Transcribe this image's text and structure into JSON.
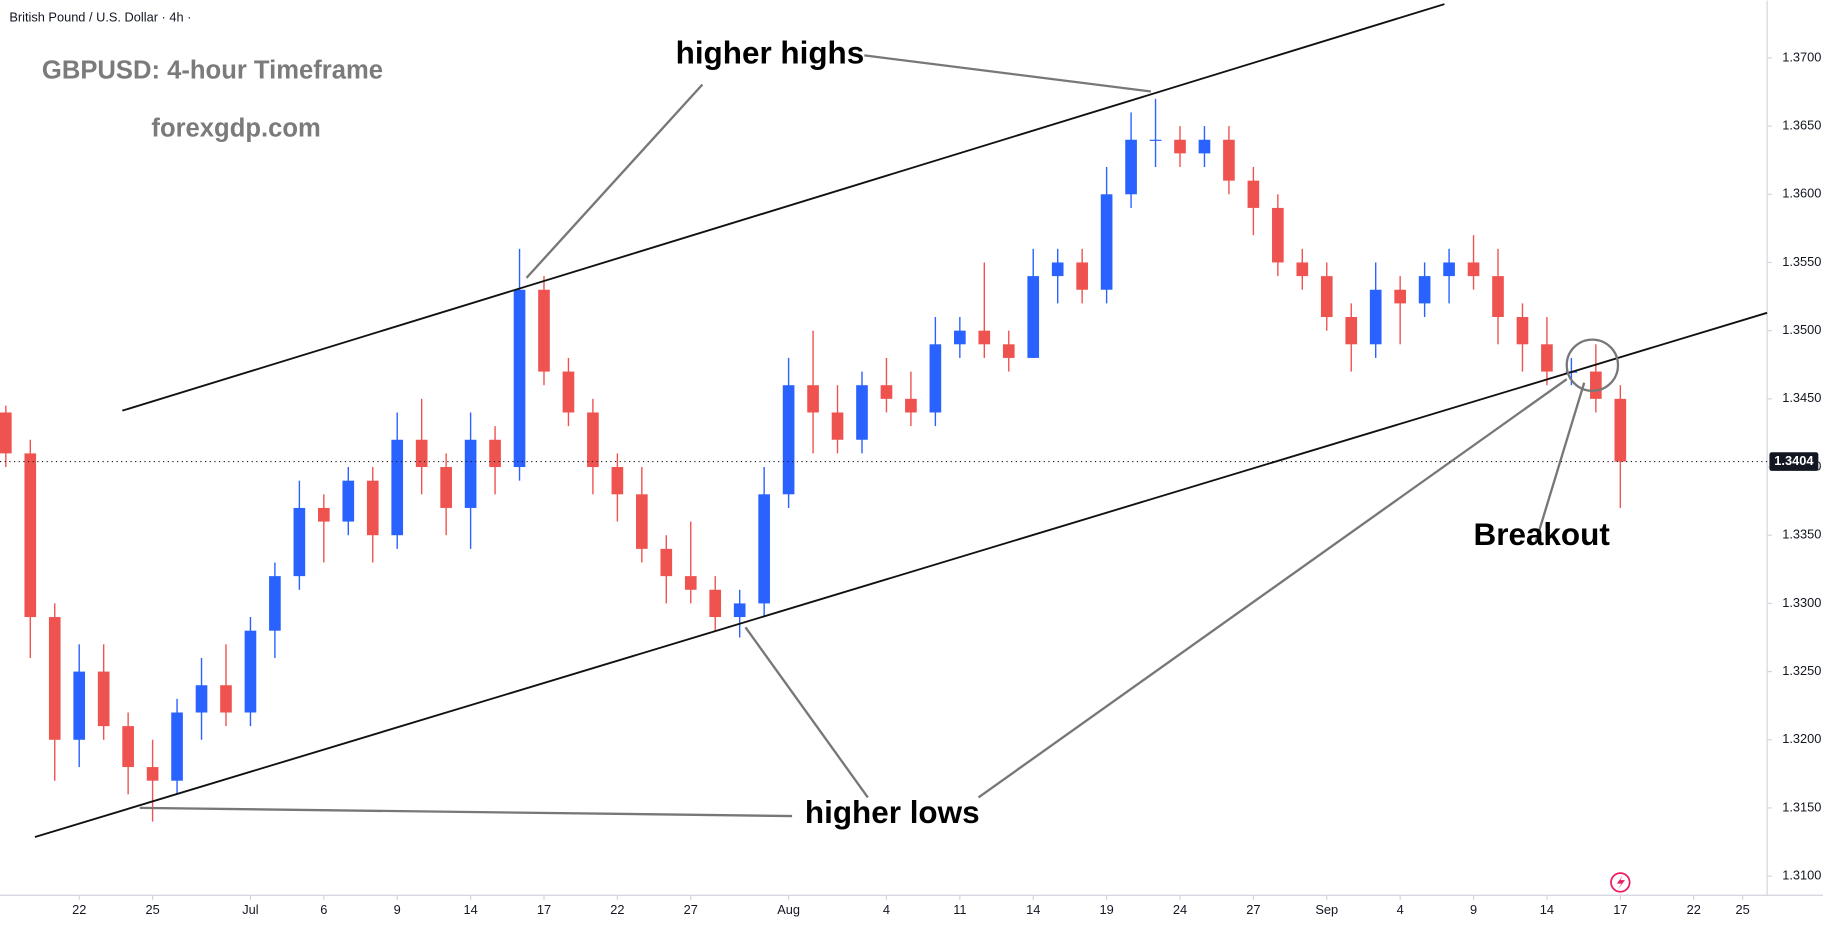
{
  "chart_data": {
    "type": "candlestick",
    "header": "British Pound / U.S. Dollar · 4h ·",
    "title": "GBPUSD: 4-hour Timeframe",
    "subtitle": "forexgdp.com",
    "annotations": [
      "higher highs",
      "higher lows",
      "Breakout"
    ],
    "up_color": "#2962ff",
    "down_color": "#ef5350",
    "x": [
      0,
      1,
      2,
      3,
      4,
      5,
      6,
      7,
      8,
      9,
      10,
      11,
      12,
      13,
      14,
      15,
      16,
      17,
      18,
      19,
      20,
      21,
      22,
      23,
      24,
      25,
      26,
      27,
      28,
      29,
      30,
      31,
      32,
      33,
      34,
      35,
      36,
      37,
      38,
      39,
      40,
      41,
      42,
      43,
      44,
      45,
      46,
      47,
      48,
      49,
      50,
      51,
      52,
      53,
      54,
      55,
      56,
      57,
      58,
      59,
      60,
      61,
      62,
      63,
      64,
      65,
      66
    ],
    "open": [
      1.344,
      1.341,
      1.329,
      1.32,
      1.325,
      1.321,
      1.318,
      1.317,
      1.322,
      1.324,
      1.322,
      1.328,
      1.332,
      1.337,
      1.336,
      1.339,
      1.335,
      1.342,
      1.34,
      1.337,
      1.342,
      1.34,
      1.353,
      1.347,
      1.344,
      1.34,
      1.338,
      1.334,
      1.332,
      1.331,
      1.329,
      1.33,
      1.338,
      1.346,
      1.344,
      1.342,
      1.346,
      1.345,
      1.344,
      1.349,
      1.35,
      1.349,
      1.348,
      1.354,
      1.355,
      1.353,
      1.36,
      1.364,
      1.364,
      1.363,
      1.364,
      1.361,
      1.359,
      1.355,
      1.354,
      1.351,
      1.349,
      1.353,
      1.352,
      1.354,
      1.355,
      1.354,
      1.351,
      1.349,
      1.347,
      1.347,
      1.345
    ],
    "high": [
      1.3445,
      1.342,
      1.33,
      1.327,
      1.327,
      1.322,
      1.32,
      1.323,
      1.326,
      1.327,
      1.329,
      1.333,
      1.339,
      1.338,
      1.34,
      1.34,
      1.344,
      1.345,
      1.341,
      1.344,
      1.343,
      1.356,
      1.354,
      1.348,
      1.345,
      1.341,
      1.34,
      1.335,
      1.336,
      1.332,
      1.331,
      1.34,
      1.348,
      1.35,
      1.346,
      1.347,
      1.348,
      1.347,
      1.351,
      1.351,
      1.355,
      1.35,
      1.356,
      1.356,
      1.356,
      1.362,
      1.366,
      1.367,
      1.365,
      1.365,
      1.365,
      1.362,
      1.36,
      1.356,
      1.355,
      1.352,
      1.355,
      1.354,
      1.355,
      1.356,
      1.357,
      1.356,
      1.352,
      1.351,
      1.348,
      1.349,
      1.346
    ],
    "low": [
      1.34,
      1.326,
      1.317,
      1.318,
      1.32,
      1.316,
      1.314,
      1.316,
      1.32,
      1.321,
      1.321,
      1.326,
      1.331,
      1.333,
      1.335,
      1.333,
      1.334,
      1.338,
      1.335,
      1.334,
      1.338,
      1.339,
      1.346,
      1.343,
      1.338,
      1.336,
      1.333,
      1.33,
      1.33,
      1.328,
      1.3275,
      1.329,
      1.337,
      1.341,
      1.341,
      1.341,
      1.344,
      1.343,
      1.343,
      1.348,
      1.348,
      1.347,
      1.348,
      1.352,
      1.352,
      1.352,
      1.359,
      1.362,
      1.362,
      1.362,
      1.36,
      1.357,
      1.354,
      1.353,
      1.35,
      1.347,
      1.348,
      1.349,
      1.351,
      1.352,
      1.353,
      1.349,
      1.347,
      1.346,
      1.346,
      1.344,
      1.337
    ],
    "close": [
      1.341,
      1.329,
      1.32,
      1.325,
      1.321,
      1.318,
      1.317,
      1.322,
      1.324,
      1.322,
      1.328,
      1.332,
      1.337,
      1.336,
      1.339,
      1.335,
      1.342,
      1.34,
      1.337,
      1.342,
      1.34,
      1.353,
      1.347,
      1.344,
      1.34,
      1.338,
      1.334,
      1.332,
      1.331,
      1.329,
      1.33,
      1.338,
      1.346,
      1.344,
      1.342,
      1.346,
      1.345,
      1.344,
      1.349,
      1.35,
      1.349,
      1.348,
      1.354,
      1.355,
      1.353,
      1.36,
      1.364,
      1.364,
      1.363,
      1.364,
      1.361,
      1.359,
      1.355,
      1.354,
      1.351,
      1.349,
      1.353,
      1.352,
      1.354,
      1.355,
      1.354,
      1.351,
      1.349,
      1.347,
      1.347,
      1.345,
      1.3404
    ],
    "last_price": {
      "value": 1.3404,
      "label": "1.3404"
    },
    "xlim": [
      0,
      72
    ],
    "xticks": [
      {
        "value": 3,
        "label": "22"
      },
      {
        "value": 6,
        "label": "25"
      },
      {
        "value": 10,
        "label": "Jul"
      },
      {
        "value": 13,
        "label": "6"
      },
      {
        "value": 16,
        "label": "9"
      },
      {
        "value": 19,
        "label": "14"
      },
      {
        "value": 22,
        "label": "17"
      },
      {
        "value": 25,
        "label": "22"
      },
      {
        "value": 28,
        "label": "27"
      },
      {
        "value": 32,
        "label": "Aug"
      },
      {
        "value": 36,
        "label": "4"
      },
      {
        "value": 39,
        "label": "11"
      },
      {
        "value": 42,
        "label": "14"
      },
      {
        "value": 45,
        "label": "19"
      },
      {
        "value": 48,
        "label": "24"
      },
      {
        "value": 51,
        "label": "27"
      },
      {
        "value": 54,
        "label": "Sep"
      },
      {
        "value": 57,
        "label": "4"
      },
      {
        "value": 60,
        "label": "9"
      },
      {
        "value": 63,
        "label": "14"
      },
      {
        "value": 66,
        "label": "17"
      },
      {
        "value": 69,
        "label": "22"
      },
      {
        "value": 71,
        "label": "25"
      }
    ],
    "ylim": [
      1.3086,
      1.3742
    ],
    "yticks": [
      {
        "value": 1.31,
        "label": "1.3100"
      },
      {
        "value": 1.315,
        "label": "1.3150"
      },
      {
        "value": 1.32,
        "label": "1.3200"
      },
      {
        "value": 1.325,
        "label": "1.3250"
      },
      {
        "value": 1.33,
        "label": "1.3300"
      },
      {
        "value": 1.335,
        "label": "1.3350"
      },
      {
        "value": 1.34,
        "label": "1.3400"
      },
      {
        "value": 1.345,
        "label": "1.3450"
      },
      {
        "value": 1.35,
        "label": "1.3500"
      },
      {
        "value": 1.355,
        "label": "1.3550"
      },
      {
        "value": 1.36,
        "label": "1.3600"
      },
      {
        "value": 1.365,
        "label": "1.3650"
      },
      {
        "value": 1.37,
        "label": "1.3700"
      }
    ]
  }
}
